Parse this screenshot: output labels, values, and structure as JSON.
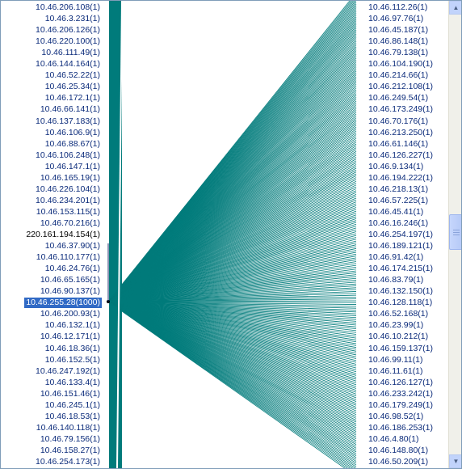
{
  "colors": {
    "edge": "#007b7b",
    "label": "#0a2a7a",
    "selected_bg": "#316ac5"
  },
  "left_nodes": [
    "10.46.206.108(1)",
    "10.46.3.231(1)",
    "10.46.206.126(1)",
    "10.46.220.100(1)",
    "10.46.111.49(1)",
    "10.46.144.164(1)",
    "10.46.52.22(1)",
    "10.46.25.34(1)",
    "10.46.172.1(1)",
    "10.46.66.141(1)",
    "10.46.137.183(1)",
    "10.46.106.9(1)",
    "10.46.88.67(1)",
    "10.46.106.248(1)",
    "10.46.147.1(1)",
    "10.46.165.19(1)",
    "10.46.226.104(1)",
    "10.46.234.201(1)",
    "10.46.153.115(1)",
    "10.46.70.216(1)",
    "220.161.194.154(1)",
    "10.46.37.90(1)",
    "10.46.110.177(1)",
    "10.46.24.76(1)",
    "10.46.65.165(1)",
    "10.46.90.137(1)",
    "10.46.255.28(1000)",
    "10.46.200.93(1)",
    "10.46.132.1(1)",
    "10.46.12.171(1)",
    "10.46.18.36(1)",
    "10.46.152.5(1)",
    "10.46.247.192(1)",
    "10.46.133.4(1)",
    "10.46.151.46(1)",
    "10.46.245.1(1)",
    "10.46.18.53(1)",
    "10.46.140.118(1)",
    "10.46.79.156(1)",
    "10.46.158.27(1)",
    "10.46.254.173(1)"
  ],
  "selected_left": "10.46.255.28(1000)",
  "black_left": "220.161.194.154(1)",
  "right_nodes": [
    "10.46.112.26(1)",
    "10.46.97.76(1)",
    "10.46.45.187(1)",
    "10.46.86.148(1)",
    "10.46.79.138(1)",
    "10.46.104.190(1)",
    "10.46.214.66(1)",
    "10.46.212.108(1)",
    "10.46.249.54(1)",
    "10.46.173.249(1)",
    "10.46.70.176(1)",
    "10.46.213.250(1)",
    "10.46.61.146(1)",
    "10.46.126.227(1)",
    "10.46.9.134(1)",
    "10.46.194.222(1)",
    "10.46.218.13(1)",
    "10.46.57.225(1)",
    "10.46.45.41(1)",
    "10.46.16.246(1)",
    "10.46.254.197(1)",
    "10.46.189.121(1)",
    "10.46.91.42(1)",
    "10.46.174.215(1)",
    "10.46.83.79(1)",
    "10.46.132.150(1)",
    "10.46.128.118(1)",
    "10.46.52.168(1)",
    "10.46.23.99(1)",
    "10.46.10.212(1)",
    "10.46.159.137(1)",
    "10.46.99.11(1)",
    "10.46.11.61(1)",
    "10.46.126.127(1)",
    "10.46.233.242(1)",
    "10.46.179.249(1)",
    "10.46.98.52(1)",
    "10.46.186.253(1)",
    "10.46.4.80(1)",
    "10.46.148.80(1)",
    "10.46.50.209(1)"
  ],
  "scrollbar": {
    "up_icon": "arrow-up-icon",
    "down_icon": "arrow-down-icon"
  }
}
